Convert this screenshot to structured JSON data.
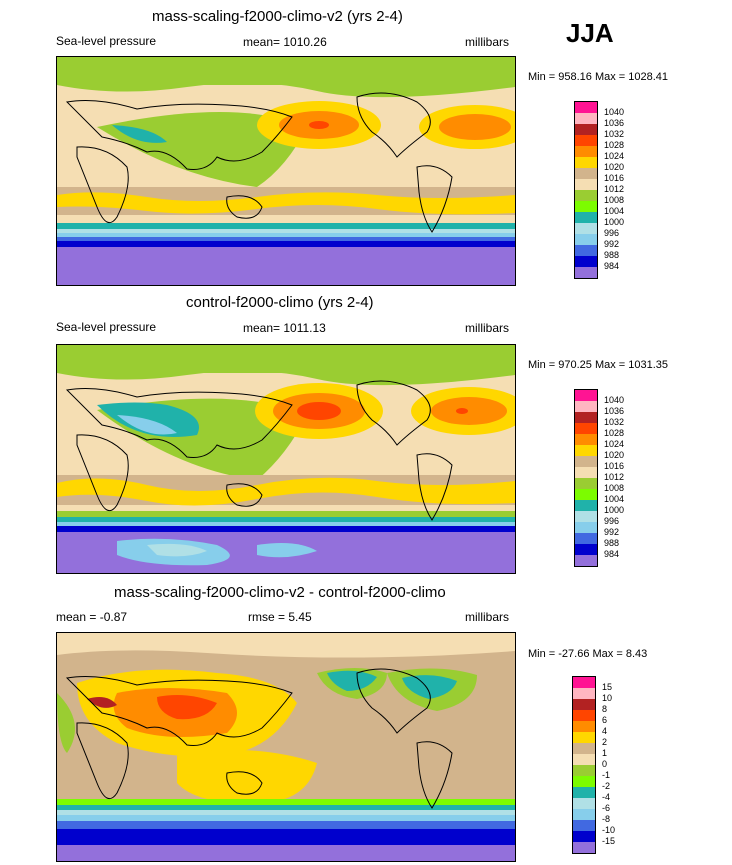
{
  "season": "JJA",
  "panels": [
    {
      "title": "mass-scaling-f2000-climo-v2 (yrs 2-4)",
      "left_label": "Sea-level pressure",
      "center_label": "mean= 1010.26",
      "right_label": "millibars",
      "minmax": "Min = 958.16 Max = 1028.41",
      "legend_levels": [
        "1040",
        "1036",
        "1032",
        "1028",
        "1024",
        "1020",
        "1016",
        "1012",
        "1008",
        "1004",
        "1000",
        "996",
        "992",
        "988",
        "984"
      ],
      "legend_colors": [
        "#ff1493",
        "#ffb6c1",
        "#b22222",
        "#ff4500",
        "#ff8c00",
        "#ffd700",
        "#d2b48c",
        "#f5deb3",
        "#9acd32",
        "#7cfc00",
        "#20b2aa",
        "#b0e0e6",
        "#87ceeb",
        "#4169e1",
        "#0000cd",
        "#9370db"
      ]
    },
    {
      "title": "control-f2000-climo (yrs 2-4)",
      "left_label": "Sea-level pressure",
      "center_label": "mean= 1011.13",
      "right_label": "millibars",
      "minmax": "Min = 970.25 Max = 1031.35",
      "legend_levels": [
        "1040",
        "1036",
        "1032",
        "1028",
        "1024",
        "1020",
        "1016",
        "1012",
        "1008",
        "1004",
        "1000",
        "996",
        "992",
        "988",
        "984"
      ],
      "legend_colors": [
        "#ff1493",
        "#ffb6c1",
        "#b22222",
        "#ff4500",
        "#ff8c00",
        "#ffd700",
        "#d2b48c",
        "#f5deb3",
        "#9acd32",
        "#7cfc00",
        "#20b2aa",
        "#b0e0e6",
        "#87ceeb",
        "#4169e1",
        "#0000cd",
        "#9370db"
      ]
    },
    {
      "title": "mass-scaling-f2000-climo-v2 - control-f2000-climo",
      "left_label": "mean = -0.87",
      "center_label": "rmse = 5.45",
      "right_label": "millibars",
      "minmax": "Min = -27.66 Max = 8.43",
      "legend_levels": [
        "15",
        "10",
        "8",
        "6",
        "4",
        "2",
        "1",
        "0",
        "-1",
        "-2",
        "-4",
        "-6",
        "-8",
        "-10",
        "-15"
      ],
      "legend_colors": [
        "#ff1493",
        "#ffb6c1",
        "#b22222",
        "#ff4500",
        "#ff8c00",
        "#ffd700",
        "#d2b48c",
        "#f5deb3",
        "#9acd32",
        "#7cfc00",
        "#20b2aa",
        "#b0e0e6",
        "#87ceeb",
        "#4169e1",
        "#0000cd",
        "#9370db"
      ]
    }
  ],
  "chart_data": [
    {
      "type": "heatmap",
      "title": "mass-scaling-f2000-climo-v2 (yrs 2-4)",
      "variable": "Sea-level pressure",
      "units": "millibars",
      "mean": 1010.26,
      "min": 958.16,
      "max": 1028.41,
      "contour_levels": [
        984,
        988,
        992,
        996,
        1000,
        1004,
        1008,
        1012,
        1016,
        1020,
        1024,
        1028,
        1032,
        1036,
        1040
      ]
    },
    {
      "type": "heatmap",
      "title": "control-f2000-climo (yrs 2-4)",
      "variable": "Sea-level pressure",
      "units": "millibars",
      "mean": 1011.13,
      "min": 970.25,
      "max": 1031.35,
      "contour_levels": [
        984,
        988,
        992,
        996,
        1000,
        1004,
        1008,
        1012,
        1016,
        1020,
        1024,
        1028,
        1032,
        1036,
        1040
      ]
    },
    {
      "type": "heatmap",
      "title": "mass-scaling-f2000-climo-v2 - control-f2000-climo",
      "units": "millibars",
      "mean": -0.87,
      "rmse": 5.45,
      "min": -27.66,
      "max": 8.43,
      "contour_levels": [
        -15,
        -10,
        -8,
        -6,
        -4,
        -2,
        -1,
        0,
        1,
        2,
        4,
        6,
        8,
        10,
        15
      ]
    }
  ]
}
